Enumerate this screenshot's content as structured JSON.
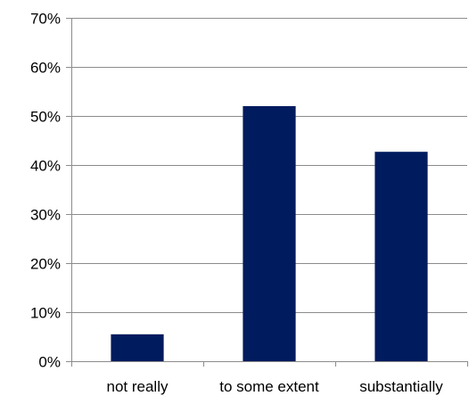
{
  "chart_data": {
    "type": "bar",
    "categories": [
      "not really",
      "to some extent",
      "substantially"
    ],
    "values": [
      5.5,
      52,
      42.7
    ],
    "ylim": [
      0,
      70
    ],
    "yticks": [
      0,
      10,
      20,
      30,
      40,
      50,
      60,
      70
    ],
    "ytick_labels": [
      "0%",
      "10%",
      "20%",
      "30%",
      "40%",
      "50%",
      "60%",
      "70%"
    ],
    "grid": true,
    "legend": "none"
  },
  "colors": {
    "bar": "#001b5e",
    "grid": "#8c8c8c",
    "axis": "#8c8c8c"
  }
}
